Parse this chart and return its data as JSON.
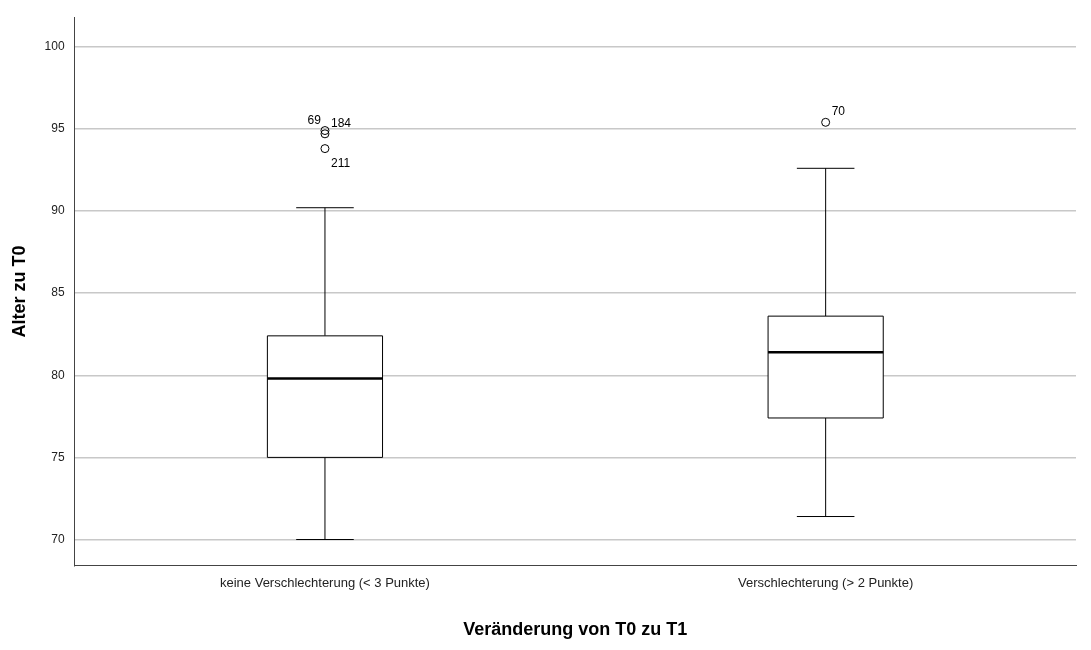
{
  "chart_data": {
    "type": "box",
    "xlabel": "Veränderung von T0 zu T1",
    "ylabel": "Alter zu T0",
    "categories": [
      "keine Verschlechterung (< 3 Punkte)",
      "Verschlechterung (> 2 Punkte)"
    ],
    "boxes": [
      {
        "low": 70.0,
        "q1": 75.0,
        "median": 79.8,
        "q3": 82.4,
        "high": 90.2,
        "outliers": [
          94.9,
          94.7,
          93.8
        ]
      },
      {
        "low": 71.4,
        "q1": 77.4,
        "median": 81.4,
        "q3": 83.6,
        "high": 92.6,
        "outliers": [
          95.4
        ]
      }
    ],
    "color": "#ffffff",
    "ylim": [
      68.4,
      101.8
    ],
    "yticks": [
      70,
      75,
      80,
      85,
      90,
      95,
      100
    ],
    "grid": "y",
    "legend": false,
    "marker": "circle",
    "annotations": [
      "69",
      "184",
      "211",
      "70"
    ]
  }
}
